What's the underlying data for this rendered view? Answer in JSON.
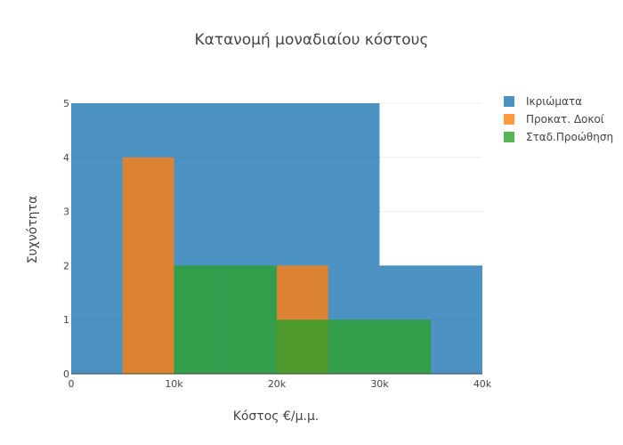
{
  "chart_data": {
    "type": "histogram",
    "title": "Κατανομή μοναδιαίου κόστους",
    "xlabel": "Κόστος €/μ.μ.",
    "ylabel": "Συχνότητα",
    "xlim": [
      0,
      40000
    ],
    "ylim": [
      0,
      5
    ],
    "x_ticks": [
      {
        "value": 0,
        "label": "0"
      },
      {
        "value": 10000,
        "label": "10k"
      },
      {
        "value": 20000,
        "label": "20k"
      },
      {
        "value": 30000,
        "label": "30k"
      },
      {
        "value": 40000,
        "label": "40k"
      }
    ],
    "y_ticks": [
      {
        "value": 0,
        "label": "0"
      },
      {
        "value": 1,
        "label": "1"
      },
      {
        "value": 2,
        "label": "2"
      },
      {
        "value": 3,
        "label": "3"
      },
      {
        "value": 4,
        "label": "4"
      },
      {
        "value": 5,
        "label": "5"
      }
    ],
    "grid": true,
    "legend_position": "top-right",
    "series": [
      {
        "name": "Ικριώματα",
        "color": "#1f77b4",
        "bins": [
          {
            "x0": 0,
            "x1": 10000,
            "count": 5
          },
          {
            "x0": 10000,
            "x1": 20000,
            "count": 5
          },
          {
            "x0": 20000,
            "x1": 30000,
            "count": 5
          },
          {
            "x0": 30000,
            "x1": 40000,
            "count": 2
          }
        ]
      },
      {
        "name": "Προκατ. Δοκοί",
        "color": "#ff7f0e",
        "bins": [
          {
            "x0": 5000,
            "x1": 10000,
            "count": 4
          },
          {
            "x0": 20000,
            "x1": 25000,
            "count": 2
          }
        ]
      },
      {
        "name": "Σταδ.Προώθηση",
        "color": "#2ca02c",
        "bins": [
          {
            "x0": 10000,
            "x1": 15000,
            "count": 2
          },
          {
            "x0": 15000,
            "x1": 20000,
            "count": 2
          },
          {
            "x0": 20000,
            "x1": 25000,
            "count": 1
          },
          {
            "x0": 25000,
            "x1": 35000,
            "count": 1
          }
        ]
      }
    ]
  }
}
